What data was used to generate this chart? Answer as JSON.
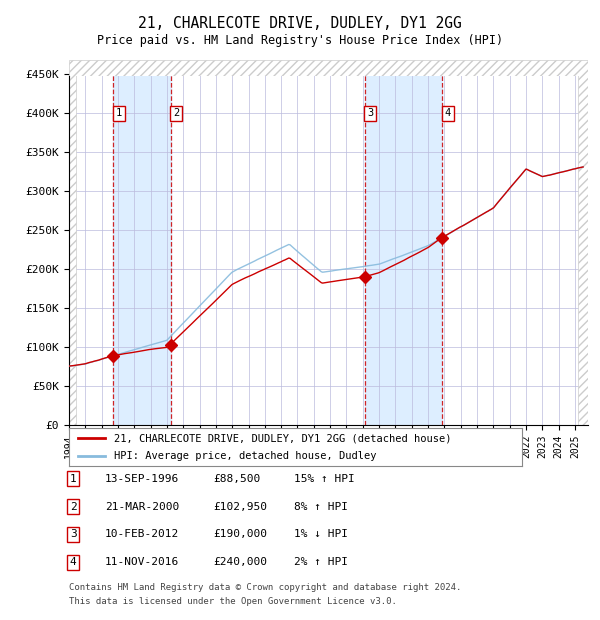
{
  "title": "21, CHARLECOTE DRIVE, DUDLEY, DY1 2GG",
  "subtitle": "Price paid vs. HM Land Registry's House Price Index (HPI)",
  "ylim": [
    0,
    450000
  ],
  "yticks": [
    0,
    50000,
    100000,
    150000,
    200000,
    250000,
    300000,
    350000,
    400000,
    450000
  ],
  "ytick_labels": [
    "£0",
    "£50K",
    "£100K",
    "£150K",
    "£200K",
    "£250K",
    "£300K",
    "£350K",
    "£400K",
    "£450K"
  ],
  "xlim_start": 1994.0,
  "xlim_end": 2025.8,
  "xticks": [
    1994,
    1995,
    1996,
    1997,
    1998,
    1999,
    2000,
    2001,
    2002,
    2003,
    2004,
    2005,
    2006,
    2007,
    2008,
    2009,
    2010,
    2011,
    2012,
    2013,
    2014,
    2015,
    2016,
    2017,
    2018,
    2019,
    2020,
    2021,
    2022,
    2023,
    2024,
    2025
  ],
  "sale_dates": [
    1996.71,
    2000.22,
    2012.11,
    2016.87
  ],
  "sale_prices": [
    88500,
    102950,
    190000,
    240000
  ],
  "sale_labels": [
    "1",
    "2",
    "3",
    "4"
  ],
  "red_line_color": "#cc0000",
  "blue_line_color": "#88bbdd",
  "background_color": "#ffffff",
  "shaded_color": "#ddeeff",
  "grid_color": "#bbbbdd",
  "sale_marker_color": "#cc0000",
  "legend_label_red": "21, CHARLECOTE DRIVE, DUDLEY, DY1 2GG (detached house)",
  "legend_label_blue": "HPI: Average price, detached house, Dudley",
  "table_rows": [
    [
      "1",
      "13-SEP-1996",
      "£88,500",
      "15% ↑ HPI"
    ],
    [
      "2",
      "21-MAR-2000",
      "£102,950",
      "8% ↑ HPI"
    ],
    [
      "3",
      "10-FEB-2012",
      "£190,000",
      "1% ↓ HPI"
    ],
    [
      "4",
      "11-NOV-2016",
      "£240,000",
      "2% ↑ HPI"
    ]
  ],
  "footnote1": "Contains HM Land Registry data © Crown copyright and database right 2024.",
  "footnote2": "This data is licensed under the Open Government Licence v3.0."
}
